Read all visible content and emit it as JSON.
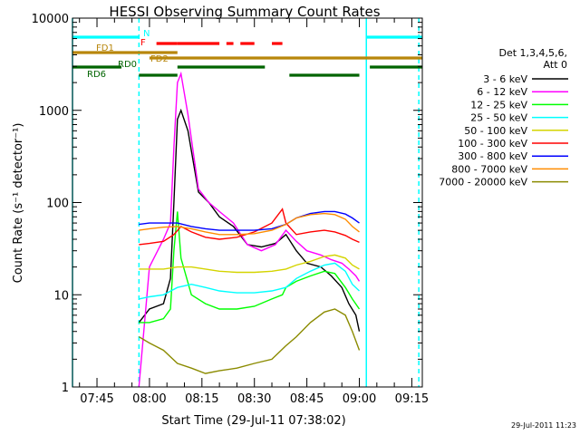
{
  "chart_data": {
    "type": "line",
    "title": "HESSI Observing Summary Count Rates",
    "xlabel": "Start Time (29-Jul-11 07:38:02)",
    "ylabel": "Count Rate (s⁻¹ detector⁻¹)",
    "y_scale": "log",
    "ylim": [
      1,
      10000
    ],
    "xlim": [
      "07:38",
      "09:18"
    ],
    "x_ticks": [
      "07:45",
      "08:00",
      "08:15",
      "08:30",
      "08:45",
      "09:00",
      "09:15"
    ],
    "y_ticks": [
      "1",
      "10",
      "100",
      "1000",
      "10000"
    ],
    "timestamp": "29-Jul-2011 11:23",
    "legend": {
      "placement": "right",
      "header": [
        "Det 1,3,4,5,6,",
        "Att 0"
      ]
    },
    "series": [
      {
        "name": "3 - 6 keV",
        "color": "#000000",
        "x": [
          "07:57",
          "08:00",
          "08:04",
          "08:06",
          "08:07",
          "08:08",
          "08:09",
          "08:11",
          "08:14",
          "08:17",
          "08:20",
          "08:24",
          "08:28",
          "08:32",
          "08:36",
          "08:39",
          "08:42",
          "08:45",
          "08:49",
          "08:52",
          "08:55",
          "08:57",
          "08:59",
          "09:00"
        ],
        "y": [
          5,
          7,
          8,
          15,
          100,
          800,
          1000,
          600,
          130,
          100,
          70,
          55,
          35,
          33,
          36,
          45,
          30,
          22,
          20,
          16,
          12,
          8,
          6,
          4
        ]
      },
      {
        "name": "6 - 12 keV",
        "color": "#ff00ff",
        "x": [
          "07:57",
          "08:00",
          "08:04",
          "08:06",
          "08:07",
          "08:08",
          "08:09",
          "08:11",
          "08:14",
          "08:17",
          "08:20",
          "08:24",
          "08:28",
          "08:32",
          "08:36",
          "08:39",
          "08:42",
          "08:45",
          "08:49",
          "08:52",
          "08:55",
          "08:57",
          "08:59",
          "09:00"
        ],
        "y": [
          1,
          20,
          40,
          60,
          400,
          2000,
          2500,
          900,
          140,
          100,
          80,
          60,
          35,
          30,
          35,
          50,
          38,
          30,
          27,
          24,
          22,
          19,
          16,
          14
        ]
      },
      {
        "name": "12 - 25 keV",
        "color": "#00ff00",
        "x": [
          "07:57",
          "08:00",
          "08:04",
          "08:06",
          "08:07",
          "08:08",
          "08:09",
          "08:12",
          "08:16",
          "08:20",
          "08:25",
          "08:30",
          "08:35",
          "08:38",
          "08:39",
          "08:42",
          "08:46",
          "08:50",
          "08:53",
          "08:56",
          "08:58",
          "09:00"
        ],
        "y": [
          5,
          5,
          5.5,
          7,
          30,
          80,
          25,
          10,
          8,
          7,
          7,
          7.5,
          9,
          10,
          12,
          14,
          16,
          18,
          17,
          12,
          9,
          7
        ]
      },
      {
        "name": "25 - 50 keV",
        "color": "#00ffff",
        "x": [
          "07:57",
          "08:00",
          "08:04",
          "08:08",
          "08:12",
          "08:16",
          "08:20",
          "08:25",
          "08:30",
          "08:35",
          "08:39",
          "08:42",
          "08:46",
          "08:50",
          "08:53",
          "08:56",
          "08:58",
          "09:00"
        ],
        "y": [
          9,
          9.5,
          10,
          12,
          13,
          12,
          11,
          10.5,
          10.5,
          11,
          12,
          15,
          18,
          21,
          22,
          18,
          13,
          11
        ]
      },
      {
        "name": "50 - 100 keV",
        "color": "#d4d400",
        "x": [
          "07:57",
          "08:00",
          "08:04",
          "08:08",
          "08:12",
          "08:16",
          "08:20",
          "08:25",
          "08:30",
          "08:35",
          "08:39",
          "08:42",
          "08:46",
          "08:50",
          "08:53",
          "08:56",
          "08:58",
          "09:00"
        ],
        "y": [
          19,
          19,
          19,
          20,
          20,
          19,
          18,
          17.5,
          17.5,
          18,
          19,
          21,
          23,
          26,
          27,
          25,
          21,
          19
        ]
      },
      {
        "name": "100 - 300 keV",
        "color": "#ff0000",
        "x": [
          "07:57",
          "08:00",
          "08:04",
          "08:07",
          "08:09",
          "08:12",
          "08:16",
          "08:20",
          "08:25",
          "08:30",
          "08:35",
          "08:38",
          "08:39",
          "08:42",
          "08:46",
          "08:50",
          "08:53",
          "08:56",
          "08:58",
          "09:00"
        ],
        "y": [
          35,
          36,
          38,
          45,
          55,
          48,
          42,
          40,
          42,
          48,
          60,
          85,
          60,
          45,
          48,
          50,
          48,
          44,
          40,
          37
        ]
      },
      {
        "name": "300 - 800 keV",
        "color": "#0000ff",
        "x": [
          "07:57",
          "08:00",
          "08:04",
          "08:08",
          "08:12",
          "08:16",
          "08:20",
          "08:25",
          "08:30",
          "08:35",
          "08:39",
          "08:42",
          "08:46",
          "08:50",
          "08:53",
          "08:56",
          "08:58",
          "09:00"
        ],
        "y": [
          58,
          60,
          60,
          60,
          55,
          52,
          50,
          50,
          50,
          52,
          58,
          68,
          76,
          80,
          80,
          75,
          68,
          60
        ]
      },
      {
        "name": "800 - 7000 keV",
        "color": "#ff8c00",
        "x": [
          "07:57",
          "08:00",
          "08:04",
          "08:08",
          "08:12",
          "08:16",
          "08:20",
          "08:25",
          "08:30",
          "08:35",
          "08:39",
          "08:42",
          "08:46",
          "08:50",
          "08:53",
          "08:56",
          "08:58",
          "09:00"
        ],
        "y": [
          50,
          52,
          54,
          55,
          52,
          48,
          45,
          45,
          46,
          50,
          58,
          68,
          74,
          76,
          74,
          66,
          55,
          48
        ]
      },
      {
        "name": "7000 - 20000 keV",
        "color": "#8b8b00",
        "x": [
          "07:57",
          "08:00",
          "08:04",
          "08:08",
          "08:12",
          "08:16",
          "08:20",
          "08:25",
          "08:30",
          "08:35",
          "08:39",
          "08:42",
          "08:46",
          "08:50",
          "08:53",
          "08:56",
          "08:58",
          "09:00"
        ],
        "y": [
          3.5,
          3,
          2.5,
          1.8,
          1.6,
          1.4,
          1.5,
          1.6,
          1.8,
          2,
          2.8,
          3.5,
          5,
          6.5,
          7,
          6,
          4,
          2.5
        ]
      }
    ],
    "flags": [
      {
        "label": "N",
        "color": "#00ffff",
        "segments": [
          [
            "07:38",
            "07:57"
          ],
          [
            "09:02",
            "09:18"
          ]
        ]
      },
      {
        "label": "F",
        "color": "#ff0000",
        "segments": [
          [
            "08:02",
            "08:08"
          ],
          [
            "08:08",
            "08:20"
          ],
          [
            "08:22",
            "08:24"
          ],
          [
            "08:26",
            "08:30"
          ],
          [
            "08:35",
            "08:38"
          ]
        ]
      },
      {
        "label": "FD1",
        "color": "#b8860b",
        "segments": [
          [
            "07:38",
            "08:08"
          ]
        ]
      },
      {
        "label": "FD2",
        "color": "#b8860b",
        "segments": [
          [
            "08:00",
            "09:18"
          ]
        ]
      },
      {
        "label": "RD0",
        "color": "#006400",
        "segments": [
          [
            "07:38",
            "07:52"
          ],
          [
            "08:08",
            "08:33"
          ],
          [
            "09:03",
            "09:18"
          ]
        ]
      },
      {
        "label": "RD6",
        "color": "#006400",
        "segments": [
          [
            "07:57",
            "08:08"
          ],
          [
            "08:40",
            "09:00"
          ]
        ]
      }
    ],
    "vertical_lines": [
      {
        "time": "07:38",
        "color": "#00ffff",
        "style": "solid"
      },
      {
        "time": "07:57",
        "color": "#00ffff",
        "style": "dashed"
      },
      {
        "time": "09:02",
        "color": "#00ffff",
        "style": "solid"
      },
      {
        "time": "09:17",
        "color": "#00ffff",
        "style": "dashed"
      }
    ]
  }
}
